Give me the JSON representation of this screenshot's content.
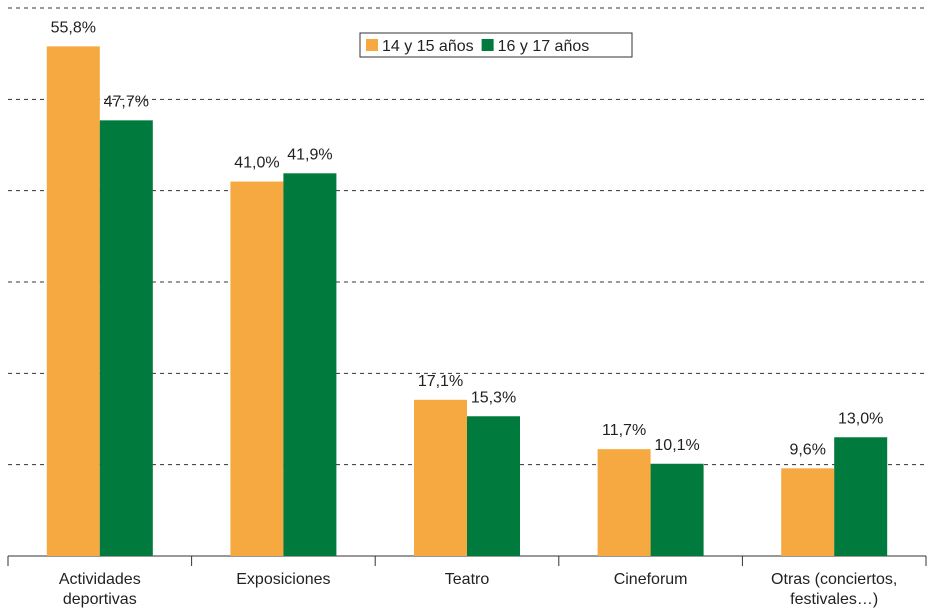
{
  "chart_data": {
    "type": "bar",
    "categories": [
      "Actividades deportivas",
      "Exposiciones",
      "Teatro",
      "Cineforum",
      "Otras (conciertos, festivales…)"
    ],
    "series": [
      {
        "name": "14 y 15 años",
        "color": "#f7a941",
        "values": [
          55.8,
          41.0,
          17.1,
          11.7,
          9.6
        ],
        "value_labels": [
          "55,8%",
          "41,0%",
          "17,1%",
          "11,7%",
          "9,6%"
        ]
      },
      {
        "name": "16 y 17 años",
        "color": "#007a3d",
        "values": [
          47.7,
          41.9,
          15.3,
          10.1,
          13.0
        ],
        "value_labels": [
          "47,7%",
          "41,9%",
          "15,3%",
          "10,1%",
          "13,0%"
        ]
      }
    ],
    "ylim": [
      0,
      60
    ],
    "yticks": [
      0,
      10,
      20,
      30,
      40,
      50,
      60
    ],
    "grid": true,
    "legend": "top"
  }
}
